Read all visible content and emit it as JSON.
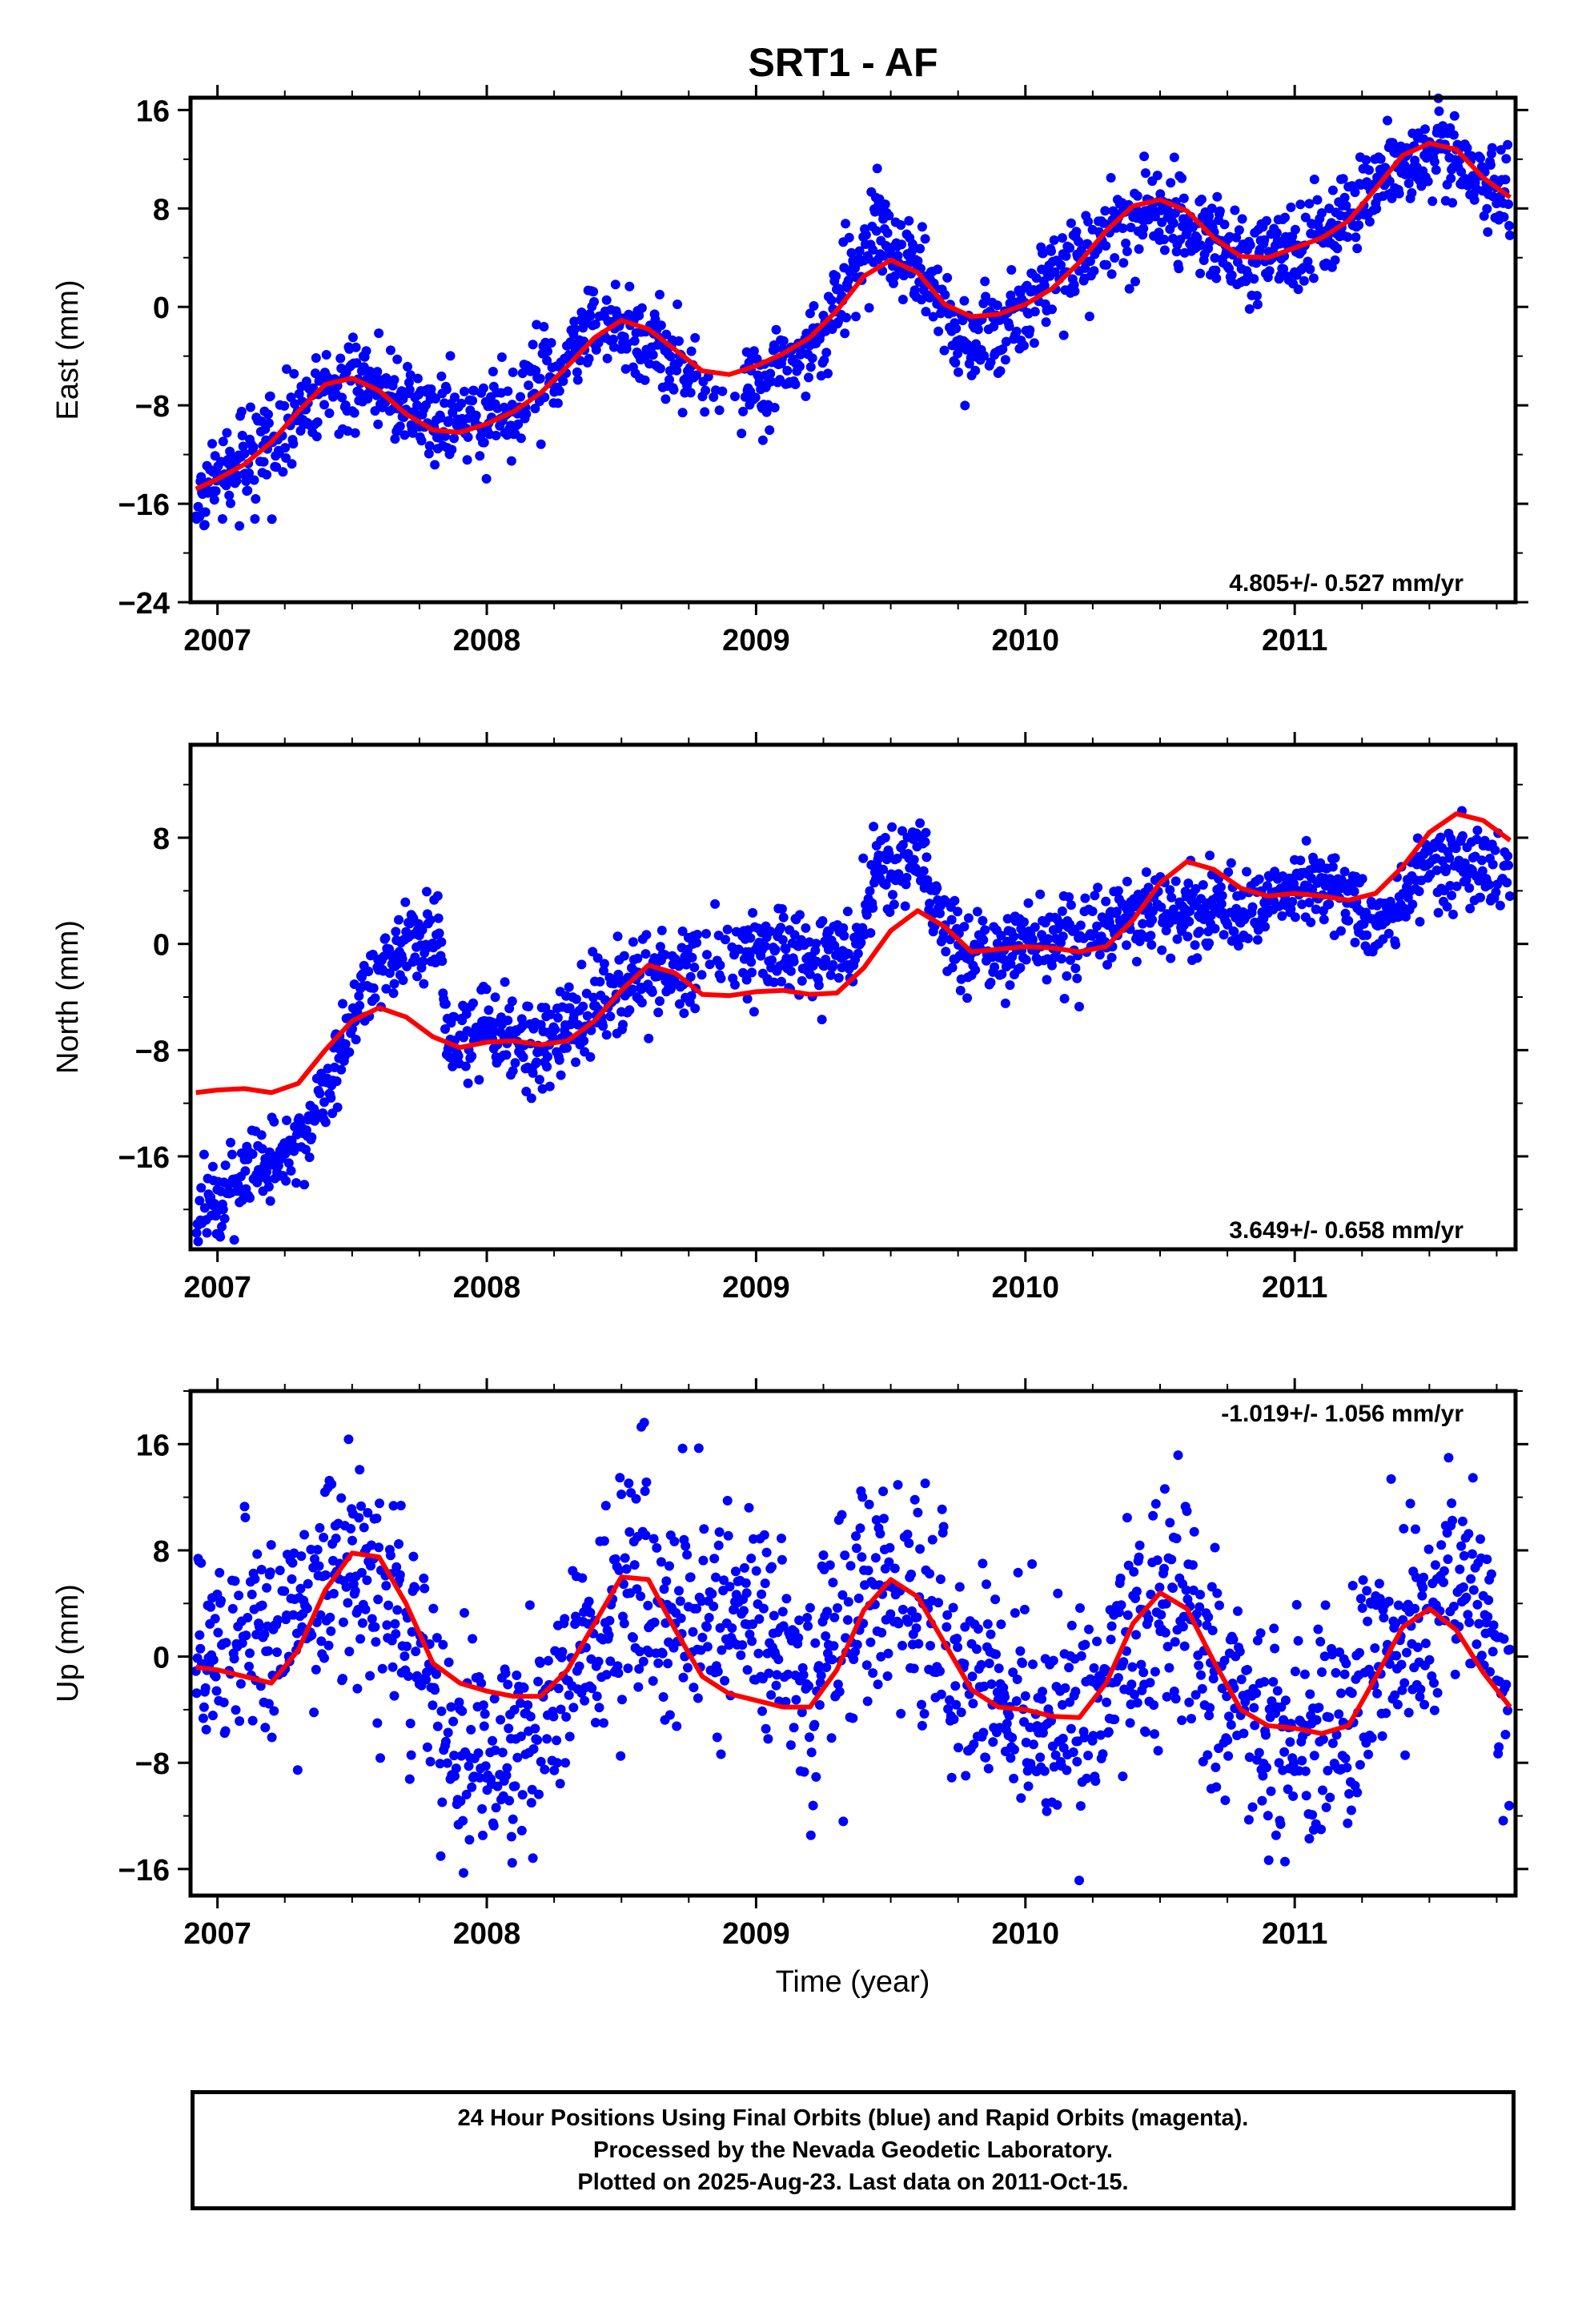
{
  "title": "SRT1 - AF",
  "colors": {
    "points": "#0000ff",
    "fit": "#ff0000",
    "axes": "#000000"
  },
  "chart_data": [
    {
      "type": "scatter",
      "id": "east",
      "ylabel": "East (mm)",
      "xlabel": "",
      "xlim": [
        2006.9,
        2011.82
      ],
      "ylim": [
        -24,
        17
      ],
      "xticks": [
        2007,
        2008,
        2009,
        2010,
        2011
      ],
      "yticks": [
        -24,
        -16,
        -8,
        0,
        8,
        16
      ],
      "rate_label": "4.805+/- 0.527 mm/yr",
      "rate_position": "bottom-right",
      "fit_line": [
        [
          2006.92,
          -14.8
        ],
        [
          2007.0,
          -14.0
        ],
        [
          2007.1,
          -12.8
        ],
        [
          2007.2,
          -11.0
        ],
        [
          2007.3,
          -8.5
        ],
        [
          2007.4,
          -6.3
        ],
        [
          2007.5,
          -5.8
        ],
        [
          2007.6,
          -6.8
        ],
        [
          2007.7,
          -8.7
        ],
        [
          2007.8,
          -10.0
        ],
        [
          2007.9,
          -10.2
        ],
        [
          2008.0,
          -9.5
        ],
        [
          2008.1,
          -8.5
        ],
        [
          2008.2,
          -7.0
        ],
        [
          2008.3,
          -4.8
        ],
        [
          2008.4,
          -2.5
        ],
        [
          2008.5,
          -1.1
        ],
        [
          2008.6,
          -1.8
        ],
        [
          2008.7,
          -3.5
        ],
        [
          2008.8,
          -5.2
        ],
        [
          2008.9,
          -5.5
        ],
        [
          2009.0,
          -4.8
        ],
        [
          2009.1,
          -3.8
        ],
        [
          2009.2,
          -2.5
        ],
        [
          2009.3,
          -0.3
        ],
        [
          2009.4,
          2.5
        ],
        [
          2009.5,
          3.8
        ],
        [
          2009.6,
          2.8
        ],
        [
          2009.7,
          0.2
        ],
        [
          2009.8,
          -0.8
        ],
        [
          2009.9,
          -0.6
        ],
        [
          2010.0,
          0.2
        ],
        [
          2010.1,
          1.5
        ],
        [
          2010.2,
          3.6
        ],
        [
          2010.3,
          6.2
        ],
        [
          2010.4,
          8.2
        ],
        [
          2010.5,
          8.7
        ],
        [
          2010.6,
          7.8
        ],
        [
          2010.7,
          5.6
        ],
        [
          2010.8,
          4.1
        ],
        [
          2010.9,
          4.0
        ],
        [
          2011.0,
          4.8
        ],
        [
          2011.1,
          5.6
        ],
        [
          2011.2,
          7.0
        ],
        [
          2011.3,
          9.6
        ],
        [
          2011.4,
          12.3
        ],
        [
          2011.5,
          13.3
        ],
        [
          2011.6,
          12.8
        ],
        [
          2011.7,
          10.5
        ],
        [
          2011.8,
          8.9
        ]
      ],
      "trend": [
        [
          2006.92,
          -17.0
        ],
        [
          2007.0,
          -13.8
        ],
        [
          2007.2,
          -11.0
        ],
        [
          2007.4,
          -6.5
        ],
        [
          2007.6,
          -6.5
        ],
        [
          2007.8,
          -9.5
        ],
        [
          2008.0,
          -9.0
        ],
        [
          2008.2,
          -6.2
        ],
        [
          2008.4,
          -1.5
        ],
        [
          2008.6,
          -2.5
        ],
        [
          2008.8,
          -6.5
        ],
        [
          2009.0,
          -6.5
        ],
        [
          2009.2,
          -3.5
        ],
        [
          2009.45,
          6.5
        ],
        [
          2009.6,
          3.0
        ],
        [
          2009.75,
          -2.5
        ],
        [
          2009.9,
          -2.0
        ],
        [
          2010.1,
          2.5
        ],
        [
          2010.3,
          6.0
        ],
        [
          2010.45,
          8.0
        ],
        [
          2010.6,
          6.8
        ],
        [
          2010.8,
          3.8
        ],
        [
          2011.0,
          5.0
        ],
        [
          2011.2,
          7.5
        ],
        [
          2011.4,
          12.0
        ],
        [
          2011.6,
          12.5
        ],
        [
          2011.8,
          8.5
        ]
      ],
      "scatter": 1.8
    },
    {
      "type": "scatter",
      "id": "north",
      "ylabel": "North (mm)",
      "xlabel": "",
      "xlim": [
        2006.9,
        2011.82
      ],
      "ylim": [
        -23,
        15
      ],
      "xticks": [
        2007,
        2008,
        2009,
        2010,
        2011
      ],
      "yticks": [
        -16,
        -8,
        0,
        8
      ],
      "rate_label": "3.649+/- 0.658 mm/yr",
      "rate_position": "bottom-right",
      "fit_line": [
        [
          2006.92,
          -11.2
        ],
        [
          2007.0,
          -11.0
        ],
        [
          2007.1,
          -10.9
        ],
        [
          2007.2,
          -11.2
        ],
        [
          2007.3,
          -10.5
        ],
        [
          2007.4,
          -8.0
        ],
        [
          2007.5,
          -5.8
        ],
        [
          2007.6,
          -4.8
        ],
        [
          2007.7,
          -5.5
        ],
        [
          2007.8,
          -7.0
        ],
        [
          2007.9,
          -7.8
        ],
        [
          2008.0,
          -7.4
        ],
        [
          2008.1,
          -7.3
        ],
        [
          2008.2,
          -7.6
        ],
        [
          2008.3,
          -7.3
        ],
        [
          2008.4,
          -5.8
        ],
        [
          2008.5,
          -3.5
        ],
        [
          2008.6,
          -1.6
        ],
        [
          2008.7,
          -2.2
        ],
        [
          2008.8,
          -3.8
        ],
        [
          2008.9,
          -3.9
        ],
        [
          2009.0,
          -3.6
        ],
        [
          2009.1,
          -3.5
        ],
        [
          2009.2,
          -3.8
        ],
        [
          2009.3,
          -3.7
        ],
        [
          2009.4,
          -1.8
        ],
        [
          2009.5,
          1.0
        ],
        [
          2009.6,
          2.5
        ],
        [
          2009.7,
          1.3
        ],
        [
          2009.8,
          -0.6
        ],
        [
          2009.9,
          -0.4
        ],
        [
          2010.0,
          -0.2
        ],
        [
          2010.1,
          -0.3
        ],
        [
          2010.2,
          -0.6
        ],
        [
          2010.3,
          -0.2
        ],
        [
          2010.4,
          1.8
        ],
        [
          2010.5,
          4.6
        ],
        [
          2010.6,
          6.2
        ],
        [
          2010.7,
          5.6
        ],
        [
          2010.8,
          4.2
        ],
        [
          2010.9,
          3.6
        ],
        [
          2011.0,
          3.8
        ],
        [
          2011.1,
          3.6
        ],
        [
          2011.2,
          3.3
        ],
        [
          2011.3,
          3.8
        ],
        [
          2011.4,
          5.8
        ],
        [
          2011.5,
          8.4
        ],
        [
          2011.6,
          9.8
        ],
        [
          2011.7,
          9.3
        ],
        [
          2011.8,
          7.8
        ]
      ],
      "trend": [
        [
          2006.92,
          -20.5
        ],
        [
          2007.0,
          -19.0
        ],
        [
          2007.2,
          -16.5
        ],
        [
          2007.35,
          -14.0
        ],
        [
          2007.45,
          -8.0
        ],
        [
          2007.55,
          -3.0
        ],
        [
          2007.7,
          0.0
        ],
        [
          2007.82,
          1.0
        ],
        [
          2007.85,
          -7.5
        ],
        [
          2008.0,
          -6.5
        ],
        [
          2008.2,
          -7.5
        ],
        [
          2008.4,
          -5.0
        ],
        [
          2008.6,
          -2.0
        ],
        [
          2008.75,
          -1.8
        ],
        [
          2009.0,
          0.0
        ],
        [
          2009.2,
          -1.0
        ],
        [
          2009.35,
          -1.0
        ],
        [
          2009.45,
          5.5
        ],
        [
          2009.6,
          6.5
        ],
        [
          2009.7,
          0.5
        ],
        [
          2009.85,
          -1.0
        ],
        [
          2010.0,
          0.0
        ],
        [
          2010.2,
          0.8
        ],
        [
          2010.4,
          2.5
        ],
        [
          2010.6,
          2.2
        ],
        [
          2010.8,
          2.5
        ],
        [
          2011.0,
          4.5
        ],
        [
          2011.2,
          4.0
        ],
        [
          2011.3,
          1.0
        ],
        [
          2011.5,
          6.0
        ],
        [
          2011.8,
          5.0
        ]
      ],
      "scatter": 1.6
    },
    {
      "type": "scatter",
      "id": "up",
      "ylabel": "Up (mm)",
      "xlabel": "Time (year)",
      "xlim": [
        2006.9,
        2011.82
      ],
      "ylim": [
        -18,
        20
      ],
      "xticks": [
        2007,
        2008,
        2009,
        2010,
        2011
      ],
      "yticks": [
        -16,
        -8,
        0,
        8,
        16
      ],
      "rate_label": "-1.019+/- 1.056 mm/yr",
      "rate_position": "top-right",
      "fit_line": [
        [
          2006.92,
          -0.8
        ],
        [
          2007.0,
          -1.0
        ],
        [
          2007.1,
          -1.5
        ],
        [
          2007.2,
          -2.0
        ],
        [
          2007.3,
          0.5
        ],
        [
          2007.4,
          5.0
        ],
        [
          2007.5,
          7.8
        ],
        [
          2007.6,
          7.5
        ],
        [
          2007.7,
          4.0
        ],
        [
          2007.8,
          -0.5
        ],
        [
          2007.9,
          -2.0
        ],
        [
          2008.0,
          -2.6
        ],
        [
          2008.1,
          -3.0
        ],
        [
          2008.2,
          -3.0
        ],
        [
          2008.3,
          -1.0
        ],
        [
          2008.4,
          2.5
        ],
        [
          2008.5,
          6.0
        ],
        [
          2008.6,
          5.8
        ],
        [
          2008.7,
          2.0
        ],
        [
          2008.8,
          -1.5
        ],
        [
          2008.9,
          -2.8
        ],
        [
          2009.0,
          -3.3
        ],
        [
          2009.1,
          -3.8
        ],
        [
          2009.2,
          -3.8
        ],
        [
          2009.3,
          -1.0
        ],
        [
          2009.4,
          3.5
        ],
        [
          2009.5,
          5.8
        ],
        [
          2009.6,
          4.5
        ],
        [
          2009.7,
          1.0
        ],
        [
          2009.8,
          -2.5
        ],
        [
          2009.9,
          -3.8
        ],
        [
          2010.0,
          -4.0
        ],
        [
          2010.1,
          -4.5
        ],
        [
          2010.2,
          -4.6
        ],
        [
          2010.3,
          -2.0
        ],
        [
          2010.4,
          2.5
        ],
        [
          2010.5,
          4.8
        ],
        [
          2010.6,
          3.6
        ],
        [
          2010.7,
          -0.4
        ],
        [
          2010.8,
          -4.0
        ],
        [
          2010.9,
          -5.2
        ],
        [
          2011.0,
          -5.4
        ],
        [
          2011.1,
          -5.8
        ],
        [
          2011.2,
          -5.2
        ],
        [
          2011.3,
          -1.6
        ],
        [
          2011.4,
          2.2
        ],
        [
          2011.5,
          3.6
        ],
        [
          2011.6,
          2.0
        ],
        [
          2011.7,
          -1.2
        ],
        [
          2011.8,
          -3.8
        ]
      ],
      "trend": [
        [
          2006.92,
          1.5
        ],
        [
          2007.2,
          1.0
        ],
        [
          2007.4,
          6.0
        ],
        [
          2007.55,
          7.0
        ],
        [
          2007.7,
          2.0
        ],
        [
          2007.85,
          -6.0
        ],
        [
          2008.0,
          -7.5
        ],
        [
          2008.2,
          -5.0
        ],
        [
          2008.4,
          1.5
        ],
        [
          2008.55,
          6.0
        ],
        [
          2008.7,
          2.0
        ],
        [
          2009.0,
          2.0
        ],
        [
          2009.2,
          -2.0
        ],
        [
          2009.4,
          4.5
        ],
        [
          2009.55,
          5.0
        ],
        [
          2009.75,
          0.0
        ],
        [
          2010.0,
          -4.0
        ],
        [
          2010.2,
          -5.0
        ],
        [
          2010.4,
          1.0
        ],
        [
          2010.55,
          4.5
        ],
        [
          2010.7,
          -1.0
        ],
        [
          2010.9,
          -5.5
        ],
        [
          2011.1,
          -6.5
        ],
        [
          2011.3,
          -2.0
        ],
        [
          2011.5,
          5.0
        ],
        [
          2011.7,
          4.0
        ],
        [
          2011.8,
          -3.0
        ]
      ],
      "scatter": 4.2
    }
  ],
  "footer": {
    "line1": "24 Hour Positions Using Final Orbits (blue) and Rapid Orbits (magenta).",
    "line2": "Processed by the Nevada Geodetic Laboratory.",
    "line3": "Plotted on 2025-Aug-23. Last data on 2011-Oct-15."
  }
}
